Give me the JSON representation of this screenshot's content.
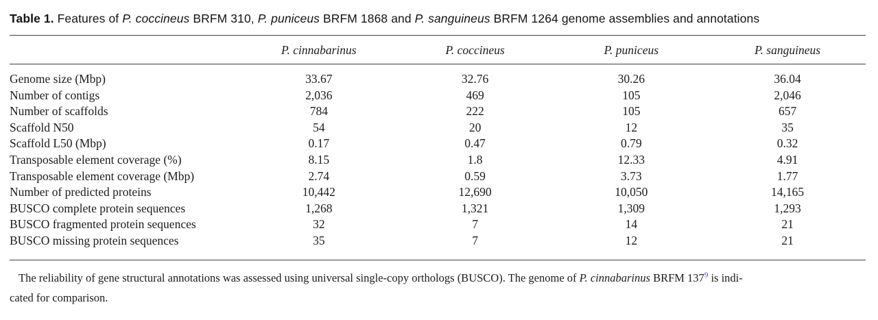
{
  "title": {
    "segments": [
      {
        "text": "Table 1.",
        "bold": true
      },
      {
        "text": " Features of "
      },
      {
        "text": "P. coccineus",
        "italic": true
      },
      {
        "text": " BRFM 310, "
      },
      {
        "text": "P. puniceus",
        "italic": true
      },
      {
        "text": " BRFM 1868 and "
      },
      {
        "text": "P. sanguineus",
        "italic": true
      },
      {
        "text": " BRFM 1264 genome assemblies and annotations"
      }
    ]
  },
  "table": {
    "columns": [
      "",
      "P. cinnabarinus",
      "P. coccineus",
      "P. puniceus",
      "P. sanguineus"
    ],
    "rows": [
      {
        "label": "Genome size (Mbp)",
        "values": [
          "33.67",
          "32.76",
          "30.26",
          "36.04"
        ]
      },
      {
        "label": "Number of contigs",
        "values": [
          "2,036",
          "469",
          "105",
          "2,046"
        ]
      },
      {
        "label": "Number of scaffolds",
        "values": [
          "784",
          "222",
          "105",
          "657"
        ]
      },
      {
        "label": "Scaffold N50",
        "values": [
          "54",
          "20",
          "12",
          "35"
        ]
      },
      {
        "label": "Scaffold L50 (Mbp)",
        "values": [
          "0.17",
          "0.47",
          "0.79",
          "0.32"
        ]
      },
      {
        "label": "Transposable element coverage (%)",
        "values": [
          "8.15",
          "1.8",
          "12.33",
          "4.91"
        ]
      },
      {
        "label": "Transposable element coverage (Mbp)",
        "values": [
          "2.74",
          "0.59",
          "3.73",
          "1.77"
        ]
      },
      {
        "label": "Number of predicted proteins",
        "values": [
          "10,442",
          "12,690",
          "10,050",
          "14,165"
        ]
      },
      {
        "label": "BUSCO complete protein sequences",
        "values": [
          "1,268",
          "1,321",
          "1,309",
          "1,293"
        ]
      },
      {
        "label": "BUSCO fragmented protein sequences",
        "values": [
          "32",
          "7",
          "14",
          "21"
        ]
      },
      {
        "label": "BUSCO missing protein sequences",
        "values": [
          "35",
          "7",
          "12",
          "21"
        ]
      }
    ]
  },
  "footnote": {
    "line1_segments": [
      {
        "text": "The reliability of gene structural annotations was assessed using universal single-copy orthologs (BUSCO). The genome of "
      },
      {
        "text": "P. cinnabarinus",
        "italic": true
      },
      {
        "text": " BRFM 137"
      },
      {
        "text": "9",
        "sup": true
      },
      {
        "text": " is indi-"
      }
    ],
    "line2": "cated for comparison."
  },
  "colors": {
    "text": "#1c1c1c",
    "rule": "#3f3f3f",
    "reference_link": "#3c3ccf"
  }
}
